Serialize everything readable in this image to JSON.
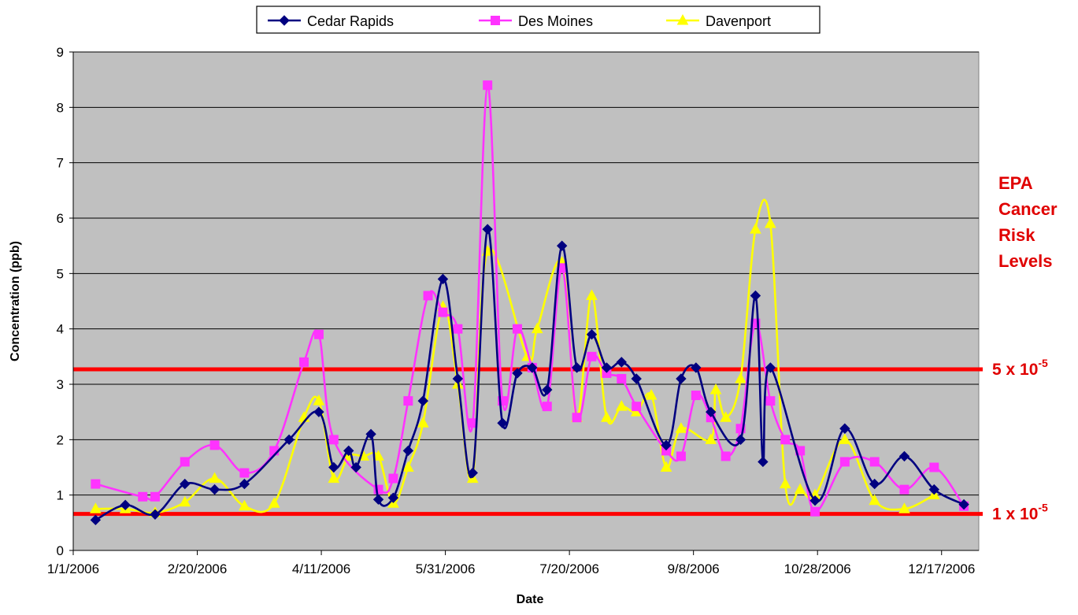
{
  "chart_data": {
    "type": "line",
    "xlabel": "Date",
    "ylabel": "Concentration (ppb)",
    "ylim": [
      0,
      9
    ],
    "yticks": [
      "0",
      "1",
      "2",
      "3",
      "4",
      "5",
      "6",
      "7",
      "8",
      "9"
    ],
    "xlim": [
      "2006-01-01",
      "2007-01-01"
    ],
    "xticks": [
      {
        "date": "2006-01-01",
        "label": "1/1/2006"
      },
      {
        "date": "2006-02-20",
        "label": "2/20/2006"
      },
      {
        "date": "2006-04-11",
        "label": "4/11/2006"
      },
      {
        "date": "2006-05-31",
        "label": "5/31/2006"
      },
      {
        "date": "2006-07-20",
        "label": "7/20/2006"
      },
      {
        "date": "2006-09-08",
        "label": "9/8/2006"
      },
      {
        "date": "2006-10-28",
        "label": "10/28/2006"
      },
      {
        "date": "2006-12-17",
        "label": "12/17/2006"
      }
    ],
    "grid": "horizontal",
    "legend_position": "top",
    "plot_background": "#c0c0c0",
    "series": [
      {
        "name": "Cedar Rapids",
        "color": "#000080",
        "marker": "diamond",
        "points": [
          [
            "2006-01-10",
            0.55
          ],
          [
            "2006-01-22",
            0.82
          ],
          [
            "2006-02-03",
            0.65
          ],
          [
            "2006-02-15",
            1.2
          ],
          [
            "2006-02-27",
            1.1
          ],
          [
            "2006-03-11",
            1.2
          ],
          [
            "2006-03-29",
            2.0
          ],
          [
            "2006-04-10",
            2.5
          ],
          [
            "2006-04-16",
            1.5
          ],
          [
            "2006-04-22",
            1.8
          ],
          [
            "2006-04-25",
            1.5
          ],
          [
            "2006-05-01",
            2.1
          ],
          [
            "2006-05-04",
            0.92
          ],
          [
            "2006-05-10",
            0.95
          ],
          [
            "2006-05-16",
            1.8
          ],
          [
            "2006-05-22",
            2.7
          ],
          [
            "2006-05-30",
            4.9
          ],
          [
            "2006-06-05",
            3.1
          ],
          [
            "2006-06-11",
            1.4
          ],
          [
            "2006-06-17",
            5.8
          ],
          [
            "2006-06-23",
            2.3
          ],
          [
            "2006-06-29",
            3.2
          ],
          [
            "2006-07-05",
            3.3
          ],
          [
            "2006-07-11",
            2.9
          ],
          [
            "2006-07-17",
            5.5
          ],
          [
            "2006-07-23",
            3.3
          ],
          [
            "2006-07-29",
            3.9
          ],
          [
            "2006-08-04",
            3.3
          ],
          [
            "2006-08-10",
            3.4
          ],
          [
            "2006-08-16",
            3.1
          ],
          [
            "2006-08-28",
            1.9
          ],
          [
            "2006-09-03",
            3.1
          ],
          [
            "2006-09-09",
            3.3
          ],
          [
            "2006-09-15",
            2.5
          ],
          [
            "2006-09-27",
            2.0
          ],
          [
            "2006-10-03",
            4.6
          ],
          [
            "2006-10-06",
            1.6
          ],
          [
            "2006-10-09",
            3.3
          ],
          [
            "2006-10-27",
            0.9
          ],
          [
            "2006-11-08",
            2.2
          ],
          [
            "2006-11-20",
            1.2
          ],
          [
            "2006-12-02",
            1.7
          ],
          [
            "2006-12-14",
            1.1
          ],
          [
            "2006-12-26",
            0.83
          ]
        ]
      },
      {
        "name": "Des Moines",
        "color": "#ff33ff",
        "marker": "square",
        "points": [
          [
            "2006-01-10",
            1.2
          ],
          [
            "2006-01-29",
            0.97
          ],
          [
            "2006-02-03",
            0.97
          ],
          [
            "2006-02-15",
            1.6
          ],
          [
            "2006-02-27",
            1.9
          ],
          [
            "2006-03-11",
            1.4
          ],
          [
            "2006-03-23",
            1.8
          ],
          [
            "2006-04-04",
            3.4
          ],
          [
            "2006-04-10",
            3.9
          ],
          [
            "2006-04-16",
            2.0
          ],
          [
            "2006-05-04",
            1.1
          ],
          [
            "2006-05-10",
            1.3
          ],
          [
            "2006-05-16",
            2.7
          ],
          [
            "2006-05-24",
            4.6
          ],
          [
            "2006-05-30",
            4.3
          ],
          [
            "2006-06-05",
            4.0
          ],
          [
            "2006-06-11",
            2.3
          ],
          [
            "2006-06-17",
            8.4
          ],
          [
            "2006-06-23",
            2.7
          ],
          [
            "2006-06-29",
            4.0
          ],
          [
            "2006-07-05",
            3.3
          ],
          [
            "2006-07-11",
            2.6
          ],
          [
            "2006-07-17",
            5.1
          ],
          [
            "2006-07-23",
            2.4
          ],
          [
            "2006-07-29",
            3.5
          ],
          [
            "2006-08-04",
            3.2
          ],
          [
            "2006-08-10",
            3.1
          ],
          [
            "2006-08-16",
            2.6
          ],
          [
            "2006-08-28",
            1.8
          ],
          [
            "2006-09-03",
            1.7
          ],
          [
            "2006-09-09",
            2.8
          ],
          [
            "2006-09-15",
            2.4
          ],
          [
            "2006-09-21",
            1.7
          ],
          [
            "2006-09-27",
            2.2
          ],
          [
            "2006-10-03",
            4.1
          ],
          [
            "2006-10-09",
            2.7
          ],
          [
            "2006-10-15",
            2.0
          ],
          [
            "2006-10-21",
            1.8
          ],
          [
            "2006-10-27",
            0.7
          ],
          [
            "2006-11-08",
            1.6
          ],
          [
            "2006-11-20",
            1.6
          ],
          [
            "2006-12-02",
            1.1
          ],
          [
            "2006-12-14",
            1.5
          ],
          [
            "2006-12-26",
            0.8
          ]
        ]
      },
      {
        "name": "Davenport",
        "color": "#ffff00",
        "marker": "triangle",
        "points": [
          [
            "2006-01-10",
            0.75
          ],
          [
            "2006-01-22",
            0.75
          ],
          [
            "2006-02-03",
            0.68
          ],
          [
            "2006-02-15",
            0.87
          ],
          [
            "2006-02-27",
            1.3
          ],
          [
            "2006-03-11",
            0.8
          ],
          [
            "2006-03-23",
            0.85
          ],
          [
            "2006-04-04",
            2.4
          ],
          [
            "2006-04-10",
            2.7
          ],
          [
            "2006-04-16",
            1.3
          ],
          [
            "2006-04-22",
            1.7
          ],
          [
            "2006-04-28",
            1.7
          ],
          [
            "2006-05-04",
            1.7
          ],
          [
            "2006-05-10",
            0.85
          ],
          [
            "2006-05-16",
            1.5
          ],
          [
            "2006-05-22",
            2.3
          ],
          [
            "2006-05-30",
            4.4
          ],
          [
            "2006-06-05",
            3.0
          ],
          [
            "2006-06-11",
            1.3
          ],
          [
            "2006-06-17",
            5.4
          ],
          [
            "2006-07-03",
            3.5
          ],
          [
            "2006-07-07",
            4.0
          ],
          [
            "2006-07-17",
            5.2
          ],
          [
            "2006-07-23",
            2.4
          ],
          [
            "2006-07-29",
            4.6
          ],
          [
            "2006-08-04",
            2.4
          ],
          [
            "2006-08-10",
            2.6
          ],
          [
            "2006-08-16",
            2.5
          ],
          [
            "2006-08-22",
            2.8
          ],
          [
            "2006-08-28",
            1.5
          ],
          [
            "2006-09-03",
            2.2
          ],
          [
            "2006-09-15",
            2.0
          ],
          [
            "2006-09-17",
            2.9
          ],
          [
            "2006-09-21",
            2.4
          ],
          [
            "2006-09-27",
            3.1
          ],
          [
            "2006-10-03",
            5.8
          ],
          [
            "2006-10-09",
            5.9
          ],
          [
            "2006-10-15",
            1.2
          ],
          [
            "2006-10-21",
            1.1
          ],
          [
            "2006-10-27",
            1.0
          ],
          [
            "2006-11-08",
            2.0
          ],
          [
            "2006-11-20",
            0.9
          ],
          [
            "2006-12-02",
            0.75
          ],
          [
            "2006-12-14",
            1.0
          ]
        ]
      }
    ],
    "reference_lines": [
      {
        "value": 3.27,
        "label_base": "5 x 10",
        "label_exp": "-5",
        "color": "#ff0000"
      },
      {
        "value": 0.66,
        "label_base": "1 x 10",
        "label_exp": "-5",
        "color": "#ff0000"
      }
    ],
    "annotation": {
      "lines": [
        "EPA",
        "Cancer",
        "Risk",
        "Levels"
      ],
      "color": "#e00000"
    }
  }
}
